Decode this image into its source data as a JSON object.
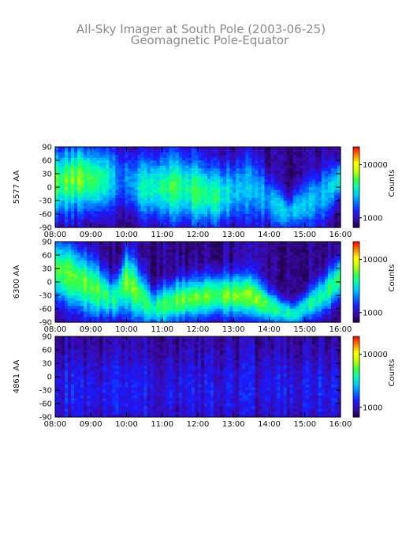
{
  "title": "All-Sky Imager at South Pole (2003-06-25)",
  "subtitle": "Geomagnetic Pole-Equator",
  "colors": {
    "colormap": [
      "#20004a",
      "#3a0aa8",
      "#1a1aff",
      "#0070ff",
      "#00c8ff",
      "#00ffb0",
      "#40ff40",
      "#c8ff00",
      "#ffff00",
      "#ff8000",
      "#ff0000"
    ],
    "background": "#ffffff",
    "axis": "#000000",
    "title_text": "#8a8a8a"
  },
  "chart_data": [
    {
      "type": "heatmap",
      "ylabel": "5577 AA",
      "x_ticks": [
        "08:00",
        "09:00",
        "10:00",
        "11:00",
        "12:00",
        "13:00",
        "14:00",
        "15:00",
        "16:00"
      ],
      "y_ticks": [
        "90",
        "60",
        "30",
        "0",
        "-30",
        "-60",
        "-90"
      ],
      "xlim": [
        "08:00",
        "16:00"
      ],
      "ylim": [
        -90,
        90
      ],
      "colorbar": {
        "label": "Counts",
        "ticks": [
          "10000",
          "1000"
        ],
        "scale": "log"
      },
      "profile": [
        {
          "time": "08:00",
          "center": 10,
          "width": 70,
          "level": 0.52
        },
        {
          "time": "08:40",
          "center": 20,
          "width": 70,
          "level": 0.55
        },
        {
          "time": "09:20",
          "center": 15,
          "width": 70,
          "level": 0.5
        },
        {
          "time": "09:50",
          "center": 20,
          "width": 60,
          "level": 0.2
        },
        {
          "time": "10:30",
          "center": 0,
          "width": 70,
          "level": 0.45
        },
        {
          "time": "11:30",
          "center": 0,
          "width": 75,
          "level": 0.48
        },
        {
          "time": "12:30",
          "center": -20,
          "width": 65,
          "level": 0.45
        },
        {
          "time": "13:30",
          "center": 0,
          "width": 70,
          "level": 0.28
        },
        {
          "time": "14:30",
          "center": -60,
          "width": 35,
          "level": 0.35
        },
        {
          "time": "15:30",
          "center": -20,
          "width": 60,
          "level": 0.3
        },
        {
          "time": "16:00",
          "center": 20,
          "width": 40,
          "level": 0.4
        }
      ]
    },
    {
      "type": "heatmap",
      "ylabel": "6300 AA",
      "x_ticks": [
        "08:00",
        "09:00",
        "10:00",
        "11:00",
        "12:00",
        "13:00",
        "14:00",
        "15:00",
        "16:00"
      ],
      "y_ticks": [
        "90",
        "60",
        "30",
        "0",
        "-30",
        "-60",
        "-90"
      ],
      "xlim": [
        "08:00",
        "16:00"
      ],
      "ylim": [
        -90,
        90
      ],
      "colorbar": {
        "label": "Counts",
        "ticks": [
          "10000",
          "1000"
        ],
        "scale": "log"
      },
      "profile": [
        {
          "time": "08:00",
          "center": 30,
          "width": 70,
          "level": 0.55
        },
        {
          "time": "09:00",
          "center": -10,
          "width": 65,
          "level": 0.55
        },
        {
          "time": "09:40",
          "center": -40,
          "width": 40,
          "level": 0.45
        },
        {
          "time": "10:00",
          "center": 0,
          "width": 70,
          "level": 0.55
        },
        {
          "time": "10:45",
          "center": -60,
          "width": 40,
          "level": 0.45
        },
        {
          "time": "11:30",
          "center": -40,
          "width": 45,
          "level": 0.55
        },
        {
          "time": "12:30",
          "center": -30,
          "width": 45,
          "level": 0.55
        },
        {
          "time": "13:30",
          "center": -30,
          "width": 45,
          "level": 0.55
        },
        {
          "time": "14:00",
          "center": -55,
          "width": 35,
          "level": 0.48
        },
        {
          "time": "14:40",
          "center": -75,
          "width": 25,
          "level": 0.42
        },
        {
          "time": "15:30",
          "center": -30,
          "width": 40,
          "level": 0.45
        },
        {
          "time": "16:00",
          "center": 10,
          "width": 45,
          "level": 0.5
        }
      ]
    },
    {
      "type": "heatmap",
      "ylabel": "4861 AA",
      "x_ticks": [
        "08:00",
        "09:00",
        "10:00",
        "11:00",
        "12:00",
        "13:00",
        "14:00",
        "15:00",
        "16:00"
      ],
      "y_ticks": [
        "90",
        "60",
        "30",
        "0",
        "-30",
        "-60",
        "-90"
      ],
      "xlim": [
        "08:00",
        "16:00"
      ],
      "ylim": [
        -90,
        90
      ],
      "colorbar": {
        "label": "Counts",
        "ticks": [
          "10000",
          "1000"
        ],
        "scale": "log"
      },
      "profile": [
        {
          "time": "08:00",
          "center": -30,
          "width": 90,
          "level": 0.12
        },
        {
          "time": "10:00",
          "center": -30,
          "width": 90,
          "level": 0.11
        },
        {
          "time": "12:00",
          "center": -30,
          "width": 90,
          "level": 0.09
        },
        {
          "time": "14:00",
          "center": -30,
          "width": 90,
          "level": 0.1
        },
        {
          "time": "16:00",
          "center": -30,
          "width": 90,
          "level": 0.12
        }
      ]
    }
  ]
}
